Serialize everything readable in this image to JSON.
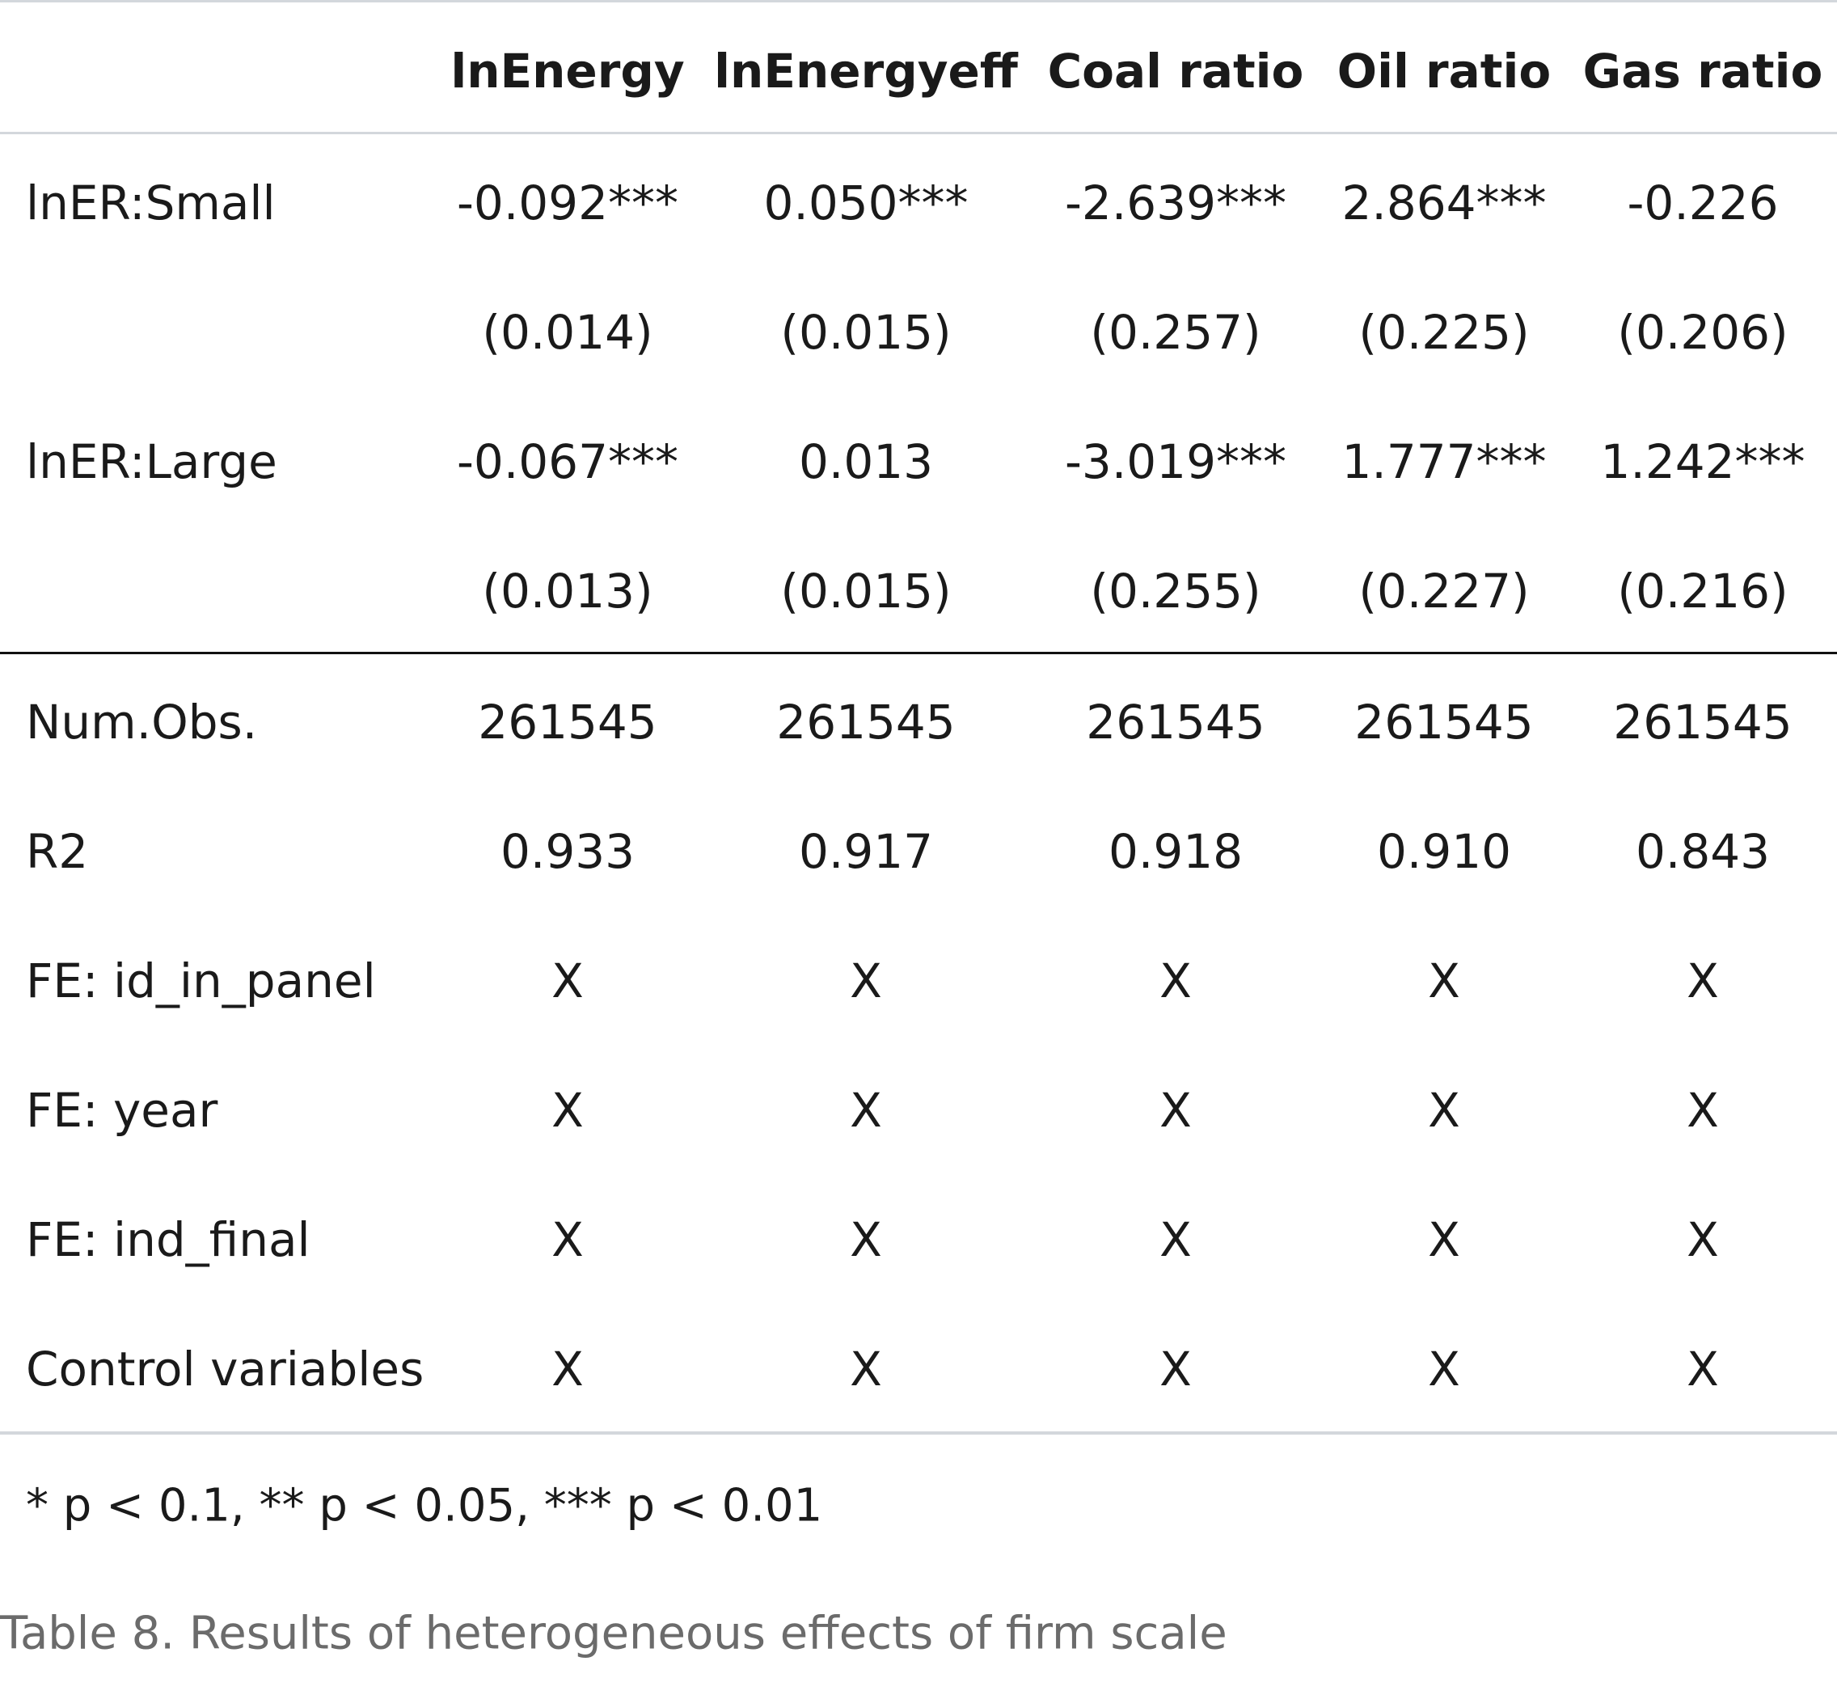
{
  "table": {
    "columns": [
      "lnEnergy",
      "lnEnergyeff",
      "Coal ratio",
      "Oil ratio",
      "Gas ratio"
    ],
    "coef_rows": [
      {
        "label": "lnER:Small",
        "estimates": [
          "-0.092***",
          "0.050***",
          "-2.639***",
          "2.864***",
          "-0.226"
        ],
        "std_errors": [
          "(0.014)",
          "(0.015)",
          "(0.257)",
          "(0.225)",
          "(0.206)"
        ]
      },
      {
        "label": "lnER:Large",
        "estimates": [
          "-0.067***",
          "0.013",
          "-3.019***",
          "1.777***",
          "1.242***"
        ],
        "std_errors": [
          "(0.013)",
          "(0.015)",
          "(0.255)",
          "(0.227)",
          "(0.216)"
        ]
      }
    ],
    "stat_rows": [
      {
        "label": "Num.Obs.",
        "values": [
          "261545",
          "261545",
          "261545",
          "261545",
          "261545"
        ]
      },
      {
        "label": "R2",
        "values": [
          "0.933",
          "0.917",
          "0.918",
          "0.910",
          "0.843"
        ]
      },
      {
        "label": "FE: id_in_panel",
        "values": [
          "X",
          "X",
          "X",
          "X",
          "X"
        ]
      },
      {
        "label": "FE: year",
        "values": [
          "X",
          "X",
          "X",
          "X",
          "X"
        ]
      },
      {
        "label": "FE: ind_final",
        "values": [
          "X",
          "X",
          "X",
          "X",
          "X"
        ]
      },
      {
        "label": "Control variables",
        "values": [
          "X",
          "X",
          "X",
          "X",
          "X"
        ]
      }
    ]
  },
  "footnote": "* p < 0.1, ** p < 0.05, *** p < 0.01",
  "caption": "Table 8. Results of heterogeneous effects of firm scale"
}
